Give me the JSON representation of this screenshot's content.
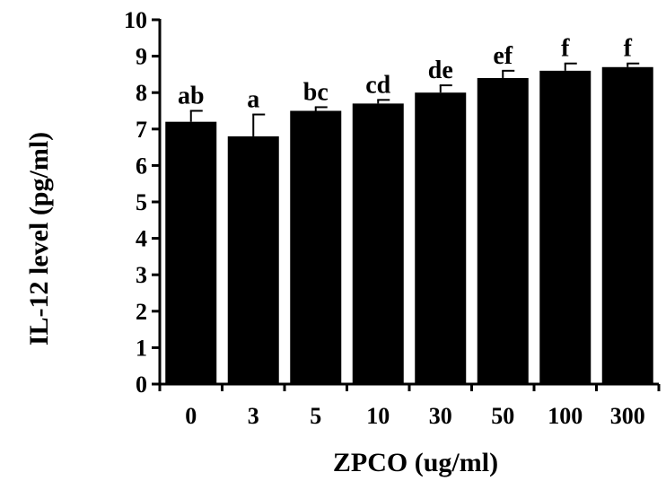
{
  "chart_data": {
    "type": "bar",
    "title": "",
    "xlabel": "ZPCO (ug/ml)",
    "ylabel": "IL-12 level (pg/ml)",
    "categories": [
      "0",
      "3",
      "5",
      "10",
      "30",
      "50",
      "100",
      "300"
    ],
    "values": [
      7.2,
      6.8,
      7.5,
      7.7,
      8.0,
      8.4,
      8.6,
      8.7
    ],
    "errors": [
      0.3,
      0.6,
      0.1,
      0.1,
      0.2,
      0.2,
      0.2,
      0.1
    ],
    "annotations": [
      "ab",
      "a",
      "bc",
      "cd",
      "de",
      "ef",
      "f",
      "f"
    ],
    "ylim": [
      0,
      10
    ],
    "yticks": [
      "0",
      "1",
      "2",
      "3",
      "4",
      "5",
      "6",
      "7",
      "8",
      "9",
      "10"
    ],
    "grid": false,
    "legend": "none",
    "bar_color": "#000000"
  }
}
